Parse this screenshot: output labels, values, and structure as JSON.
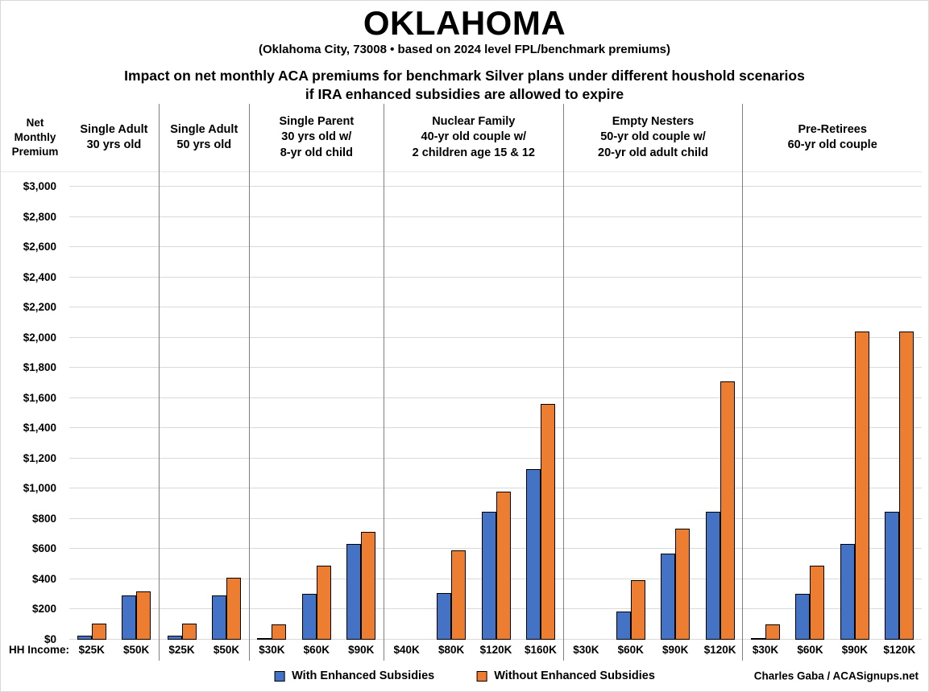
{
  "title": "OKLAHOMA",
  "subtitle": "(Oklahoma City, 73008 • based on 2024 level FPL/benchmark premiums)",
  "heading_line1": "Impact on net monthly ACA premiums for benchmark Silver plans under different houshold scenarios",
  "heading_line2": "if IRA enhanced subsidies are allowed to expire",
  "axis_header": "Net\nMonthly\nPremium",
  "hh_income_label": "HH Income:",
  "credit": "Charles Gaba / ACASignups.net",
  "chart_data": {
    "type": "bar",
    "ylabel": "Net Monthly Premium",
    "ylim": [
      0,
      3000
    ],
    "y_tick_interval": 200,
    "y_tick_labels": [
      "$0",
      "$200",
      "$400",
      "$600",
      "$800",
      "$1,000",
      "$1,200",
      "$1,400",
      "$1,600",
      "$1,800",
      "$2,000",
      "$2,200",
      "$2,400",
      "$2,600",
      "$2,800",
      "$3,000"
    ],
    "grid": true,
    "legend_position": "bottom",
    "series": [
      "With Enhanced Subsidies",
      "Without Enhanced Subsidies"
    ],
    "series_colors": [
      "#4472C4",
      "#ED7D31"
    ],
    "colors": {
      "bar_outline": "#000000",
      "gridline": "#d9d9d9",
      "divider": "#808080"
    },
    "panels": [
      {
        "title_lines": [
          "Single Adult",
          "30 yrs old"
        ],
        "categories": [
          "$25K",
          "$50K"
        ],
        "with_enhanced": [
          25,
          295
        ],
        "without_enhanced": [
          105,
          320
        ]
      },
      {
        "title_lines": [
          "Single Adult",
          "50 yrs old"
        ],
        "categories": [
          "$25K",
          "$50K"
        ],
        "with_enhanced": [
          25,
          295
        ],
        "without_enhanced": [
          105,
          410
        ]
      },
      {
        "title_lines": [
          "Single Parent",
          "30 yrs old w/",
          "8-yr old child"
        ],
        "categories": [
          "$30K",
          "$60K",
          "$90K"
        ],
        "with_enhanced": [
          10,
          305,
          635
        ],
        "without_enhanced": [
          100,
          490,
          715
        ]
      },
      {
        "title_lines": [
          "Nuclear Family",
          "40-yr old couple w/",
          "2 children age 15 & 12"
        ],
        "categories": [
          "$40K",
          "$80K",
          "$120K",
          "$160K"
        ],
        "with_enhanced": [
          0,
          310,
          850,
          1130
        ],
        "without_enhanced": [
          0,
          590,
          980,
          1560
        ]
      },
      {
        "title_lines": [
          "Empty Nesters",
          "50-yr old couple w/",
          "20-yr old adult child"
        ],
        "categories": [
          "$30K",
          "$60K",
          "$90K",
          "$120K"
        ],
        "with_enhanced": [
          0,
          185,
          570,
          850
        ],
        "without_enhanced": [
          0,
          395,
          735,
          1710
        ]
      },
      {
        "title_lines": [
          "Pre-Retirees",
          "60-yr old couple"
        ],
        "categories": [
          "$30K",
          "$60K",
          "$90K",
          "$120K"
        ],
        "with_enhanced": [
          10,
          305,
          635,
          850
        ],
        "without_enhanced": [
          100,
          490,
          2040,
          2040
        ]
      }
    ]
  }
}
